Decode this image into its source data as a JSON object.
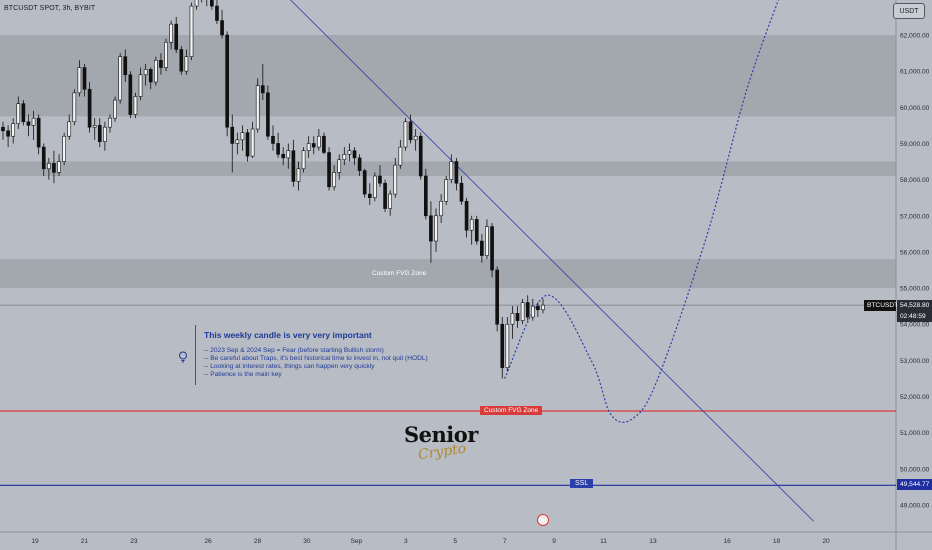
{
  "header": {
    "symbol": "BTCUSDT SPOT, 3h, BYBIT",
    "currency": "USDT"
  },
  "colors": {
    "background": "#b8bcc4",
    "zone_fill": "#a3a7ae",
    "trendline": "#2b3fa8",
    "ssl_line": "#1f2fa0",
    "fvg_line": "#d93a3a",
    "candle": "#111111"
  },
  "note": {
    "title": "This weekly candle is very very important",
    "lines": [
      "-- 2023 Sep & 2024 Sep = Fear (before starting Bullish storm)",
      "-- Be careful about Traps, it's best historical time to invest in, not quit (HODL)",
      "-- Looking at interest rates, things can happen very quickly",
      "-- Patience is the main key"
    ]
  },
  "logo": {
    "top": "Senior",
    "bottom": "Crypto"
  },
  "labels": {
    "fvg_upper": "Custom FVG Zone",
    "fvg_lower": "Custom FVG Zone",
    "ssl": "SSL"
  },
  "price_tags": {
    "symbol": "BTCUSDT",
    "last_price": "54,528.80",
    "countdown": "02:48:59",
    "ssl_price": "49,544.77"
  },
  "chart_data": {
    "type": "candlestick",
    "y_axis": {
      "range": [
        48350,
        63200
      ],
      "ticks": [
        "49,000.00",
        "50,000.00",
        "51,000.00",
        "52,000.00",
        "53,000.00",
        "54,000.00",
        "55,000.00",
        "56,000.00",
        "57,000.00",
        "58,000.00",
        "59,000.00",
        "60,000.00",
        "61,000.00",
        "62,000.00"
      ],
      "tick_values": [
        49000,
        50000,
        51000,
        52000,
        53000,
        54000,
        55000,
        56000,
        57000,
        58000,
        59000,
        60000,
        61000,
        62000
      ]
    },
    "x_axis": {
      "ticks": [
        "19",
        "21",
        "23",
        "26",
        "28",
        "30",
        "Sep",
        "3",
        "5",
        "7",
        "9",
        "11",
        "13",
        "16",
        "18",
        "20"
      ],
      "tick_days": [
        19,
        21,
        23,
        26,
        28,
        30,
        32,
        34,
        36,
        38,
        40,
        42,
        44,
        47,
        49,
        51
      ]
    },
    "zones": [
      {
        "name": "upper-zone",
        "from": 59750,
        "to": 62000
      },
      {
        "name": "mid-zone",
        "from": 58100,
        "to": 58500
      },
      {
        "name": "fvg-zone",
        "from": 55000,
        "to": 55800
      }
    ],
    "levels": {
      "last_price": 54528.8,
      "fvg_lower": 51600,
      "ssl": 49544.77
    },
    "trendline": [
      [
        29.0,
        63200
      ],
      [
        50.5,
        48550
      ]
    ],
    "projection": [
      [
        38.0,
        52500
      ],
      [
        39.7,
        54800
      ],
      [
        41.5,
        53000
      ],
      [
        42.3,
        51500
      ],
      [
        43.2,
        51400
      ],
      [
        44.2,
        52500
      ],
      [
        46.2,
        56500
      ],
      [
        47.8,
        60500
      ],
      [
        49.2,
        63200
      ]
    ],
    "candles": [
      [
        59450,
        59600,
        59100,
        59350
      ],
      [
        59350,
        59500,
        58900,
        59200
      ],
      [
        59200,
        59700,
        59000,
        59550
      ],
      [
        59550,
        60300,
        59400,
        60100
      ],
      [
        60100,
        60200,
        59500,
        59600
      ],
      [
        59600,
        59800,
        59200,
        59500
      ],
      [
        59500,
        59900,
        59100,
        59700
      ],
      [
        59700,
        59800,
        58700,
        58900
      ],
      [
        58900,
        59000,
        58100,
        58300
      ],
      [
        58300,
        58600,
        58000,
        58450
      ],
      [
        58450,
        58800,
        57900,
        58200
      ],
      [
        58200,
        58700,
        58100,
        58500
      ],
      [
        58500,
        59300,
        58400,
        59200
      ],
      [
        59200,
        59800,
        59100,
        59600
      ],
      [
        59600,
        60500,
        59500,
        60400
      ],
      [
        60400,
        61300,
        60300,
        61100
      ],
      [
        61100,
        61200,
        60300,
        60500
      ],
      [
        60500,
        60700,
        59300,
        59450
      ],
      [
        59450,
        59700,
        59100,
        59500
      ],
      [
        59500,
        59700,
        58900,
        59050
      ],
      [
        59050,
        59600,
        58800,
        59450
      ],
      [
        59450,
        59800,
        59300,
        59700
      ],
      [
        59700,
        60300,
        59600,
        60200
      ],
      [
        60200,
        61500,
        60100,
        61400
      ],
      [
        61400,
        61600,
        60700,
        60900
      ],
      [
        60900,
        61000,
        59700,
        59800
      ],
      [
        59800,
        60400,
        59700,
        60300
      ],
      [
        60300,
        61100,
        60200,
        60900
      ],
      [
        60900,
        61200,
        60600,
        61050
      ],
      [
        61050,
        61100,
        60500,
        60700
      ],
      [
        60700,
        61400,
        60600,
        61300
      ],
      [
        61300,
        61500,
        60900,
        61100
      ],
      [
        61100,
        61900,
        61000,
        61800
      ],
      [
        61800,
        62400,
        61600,
        62300
      ],
      [
        62300,
        62500,
        61500,
        61600
      ],
      [
        61600,
        61700,
        60900,
        61000
      ],
      [
        61000,
        61600,
        60900,
        61400
      ],
      [
        61400,
        62900,
        61300,
        62800
      ],
      [
        62800,
        63200,
        62700,
        63200
      ],
      [
        63200,
        63200,
        62900,
        63100
      ],
      [
        63100,
        63200,
        62800,
        63000
      ],
      [
        63000,
        63200,
        62700,
        62800
      ],
      [
        62800,
        63000,
        62300,
        62400
      ],
      [
        62400,
        62700,
        61900,
        62000
      ],
      [
        62000,
        62100,
        59200,
        59450
      ],
      [
        59450,
        59800,
        58200,
        59000
      ],
      [
        59000,
        59300,
        58700,
        59100
      ],
      [
        59100,
        59500,
        58800,
        59300
      ],
      [
        59300,
        59400,
        58500,
        58650
      ],
      [
        58650,
        59600,
        58600,
        59400
      ],
      [
        59400,
        60800,
        59300,
        60600
      ],
      [
        60600,
        61200,
        60200,
        60400
      ],
      [
        60400,
        60600,
        59100,
        59200
      ],
      [
        59200,
        59500,
        58800,
        59000
      ],
      [
        59000,
        59300,
        58600,
        58700
      ],
      [
        58700,
        58900,
        58400,
        58600
      ],
      [
        58600,
        59000,
        58300,
        58800
      ],
      [
        58800,
        59100,
        57800,
        57950
      ],
      [
        57950,
        58500,
        57700,
        58300
      ],
      [
        58300,
        58900,
        58200,
        58800
      ],
      [
        58800,
        59200,
        58600,
        59000
      ],
      [
        59000,
        59200,
        58700,
        58900
      ],
      [
        58900,
        59400,
        58800,
        59200
      ],
      [
        59200,
        59300,
        58700,
        58750
      ],
      [
        58750,
        58900,
        57700,
        57800
      ],
      [
        57800,
        58400,
        57700,
        58200
      ],
      [
        58200,
        58700,
        58000,
        58550
      ],
      [
        58550,
        58900,
        58400,
        58700
      ],
      [
        58700,
        59000,
        58500,
        58800
      ],
      [
        58800,
        58900,
        58400,
        58600
      ],
      [
        58600,
        58700,
        58100,
        58250
      ],
      [
        58250,
        58300,
        57500,
        57600
      ],
      [
        57600,
        57900,
        57300,
        57500
      ],
      [
        57500,
        58200,
        57400,
        58100
      ],
      [
        58100,
        58400,
        57800,
        57900
      ],
      [
        57900,
        58000,
        57100,
        57200
      ],
      [
        57200,
        57700,
        57000,
        57600
      ],
      [
        57600,
        58600,
        57500,
        58400
      ],
      [
        58400,
        59100,
        58300,
        58900
      ],
      [
        58900,
        59700,
        58800,
        59600
      ],
      [
        59600,
        59800,
        59000,
        59100
      ],
      [
        59100,
        59400,
        58800,
        59200
      ],
      [
        59200,
        59300,
        58000,
        58100
      ],
      [
        58100,
        58300,
        56900,
        57000
      ],
      [
        57000,
        57400,
        55700,
        56300
      ],
      [
        56300,
        57200,
        56000,
        57000
      ],
      [
        57000,
        57600,
        56800,
        57400
      ],
      [
        57400,
        58100,
        57300,
        58000
      ],
      [
        58000,
        58700,
        57900,
        58500
      ],
      [
        58500,
        58600,
        57700,
        57900
      ],
      [
        57900,
        58100,
        57300,
        57400
      ],
      [
        57400,
        57500,
        56400,
        56600
      ],
      [
        56600,
        57000,
        56200,
        56900
      ],
      [
        56900,
        57000,
        56200,
        56300
      ],
      [
        56300,
        56500,
        55700,
        55900
      ],
      [
        55900,
        56900,
        55800,
        56700
      ],
      [
        56700,
        56800,
        55300,
        55500
      ],
      [
        55500,
        55600,
        53800,
        54000
      ],
      [
        54000,
        54200,
        52500,
        52800
      ],
      [
        52800,
        54200,
        52700,
        54000
      ],
      [
        54000,
        54500,
        53600,
        54300
      ],
      [
        54300,
        54500,
        53900,
        54100
      ],
      [
        54100,
        54700,
        54000,
        54600
      ],
      [
        54600,
        54800,
        54100,
        54200
      ],
      [
        54200,
        54700,
        54100,
        54500
      ],
      [
        54500,
        54600,
        54200,
        54400
      ],
      [
        54400,
        54700,
        54300,
        54529
      ]
    ]
  }
}
